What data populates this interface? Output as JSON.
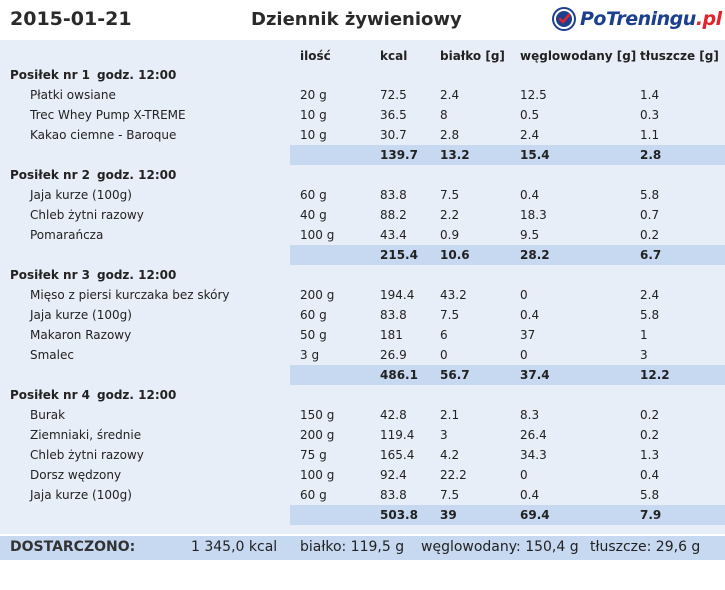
{
  "header": {
    "date": "2015-01-21",
    "title": "Dziennik żywieniowy",
    "logo_main": "PoTreningu",
    "logo_tld": ".pl"
  },
  "columns": {
    "qty": "ilość",
    "kcal": "kcal",
    "protein": "białko [g]",
    "carbs": "węglowodany [g]",
    "fat": "tłuszcze [g]"
  },
  "meals": [
    {
      "name": "Posiłek nr 1",
      "time": "godz. 12:00",
      "items": [
        {
          "name": "Płatki owsiane",
          "qty": "20 g",
          "kcal": "72.5",
          "protein": "2.4",
          "carbs": "12.5",
          "fat": "1.4"
        },
        {
          "name": "Trec Whey Pump X-TREME",
          "qty": "10 g",
          "kcal": "36.5",
          "protein": "8",
          "carbs": "0.5",
          "fat": "0.3"
        },
        {
          "name": "Kakao ciemne - Baroque",
          "qty": "10 g",
          "kcal": "30.7",
          "protein": "2.8",
          "carbs": "2.4",
          "fat": "1.1"
        }
      ],
      "sum": {
        "kcal": "139.7",
        "protein": "13.2",
        "carbs": "15.4",
        "fat": "2.8"
      }
    },
    {
      "name": "Posiłek nr 2",
      "time": "godz. 12:00",
      "items": [
        {
          "name": "Jaja kurze (100g)",
          "qty": "60 g",
          "kcal": "83.8",
          "protein": "7.5",
          "carbs": "0.4",
          "fat": "5.8"
        },
        {
          "name": "Chleb żytni razowy",
          "qty": "40 g",
          "kcal": "88.2",
          "protein": "2.2",
          "carbs": "18.3",
          "fat": "0.7"
        },
        {
          "name": "Pomarańcza",
          "qty": "100 g",
          "kcal": "43.4",
          "protein": "0.9",
          "carbs": "9.5",
          "fat": "0.2"
        }
      ],
      "sum": {
        "kcal": "215.4",
        "protein": "10.6",
        "carbs": "28.2",
        "fat": "6.7"
      }
    },
    {
      "name": "Posiłek nr 3",
      "time": "godz. 12:00",
      "items": [
        {
          "name": "Mięso z piersi kurczaka bez skóry",
          "qty": "200 g",
          "kcal": "194.4",
          "protein": "43.2",
          "carbs": "0",
          "fat": "2.4"
        },
        {
          "name": "Jaja kurze (100g)",
          "qty": "60 g",
          "kcal": "83.8",
          "protein": "7.5",
          "carbs": "0.4",
          "fat": "5.8"
        },
        {
          "name": "Makaron Razowy",
          "qty": "50 g",
          "kcal": "181",
          "protein": "6",
          "carbs": "37",
          "fat": "1"
        },
        {
          "name": "Smalec",
          "qty": "3 g",
          "kcal": "26.9",
          "protein": "0",
          "carbs": "0",
          "fat": "3"
        }
      ],
      "sum": {
        "kcal": "486.1",
        "protein": "56.7",
        "carbs": "37.4",
        "fat": "12.2"
      }
    },
    {
      "name": "Posiłek nr 4",
      "time": "godz. 12:00",
      "items": [
        {
          "name": "Burak",
          "qty": "150 g",
          "kcal": "42.8",
          "protein": "2.1",
          "carbs": "8.3",
          "fat": "0.2"
        },
        {
          "name": "Ziemniaki, średnie",
          "qty": "200 g",
          "kcal": "119.4",
          "protein": "3",
          "carbs": "26.4",
          "fat": "0.2"
        },
        {
          "name": "Chleb żytni razowy",
          "qty": "75 g",
          "kcal": "165.4",
          "protein": "4.2",
          "carbs": "34.3",
          "fat": "1.3"
        },
        {
          "name": "Dorsz wędzony",
          "qty": "100 g",
          "kcal": "92.4",
          "protein": "22.2",
          "carbs": "0",
          "fat": "0.4"
        },
        {
          "name": "Jaja kurze (100g)",
          "qty": "60 g",
          "kcal": "83.8",
          "protein": "7.5",
          "carbs": "0.4",
          "fat": "5.8"
        }
      ],
      "sum": {
        "kcal": "503.8",
        "protein": "39",
        "carbs": "69.4",
        "fat": "7.9"
      }
    }
  ],
  "footer": {
    "label": "DOSTARCZONO:",
    "kcal": "1 345,0 kcal",
    "protein": "białko: 119,5 g",
    "carbs": "węglowodany: 150,4 g",
    "fat": "tłuszcze: 29,6 g"
  },
  "colors": {
    "accent": "#c6d9f0",
    "background": "#e8eef7",
    "logo_blue": "#1d3f8f",
    "logo_red": "#e2232a"
  }
}
